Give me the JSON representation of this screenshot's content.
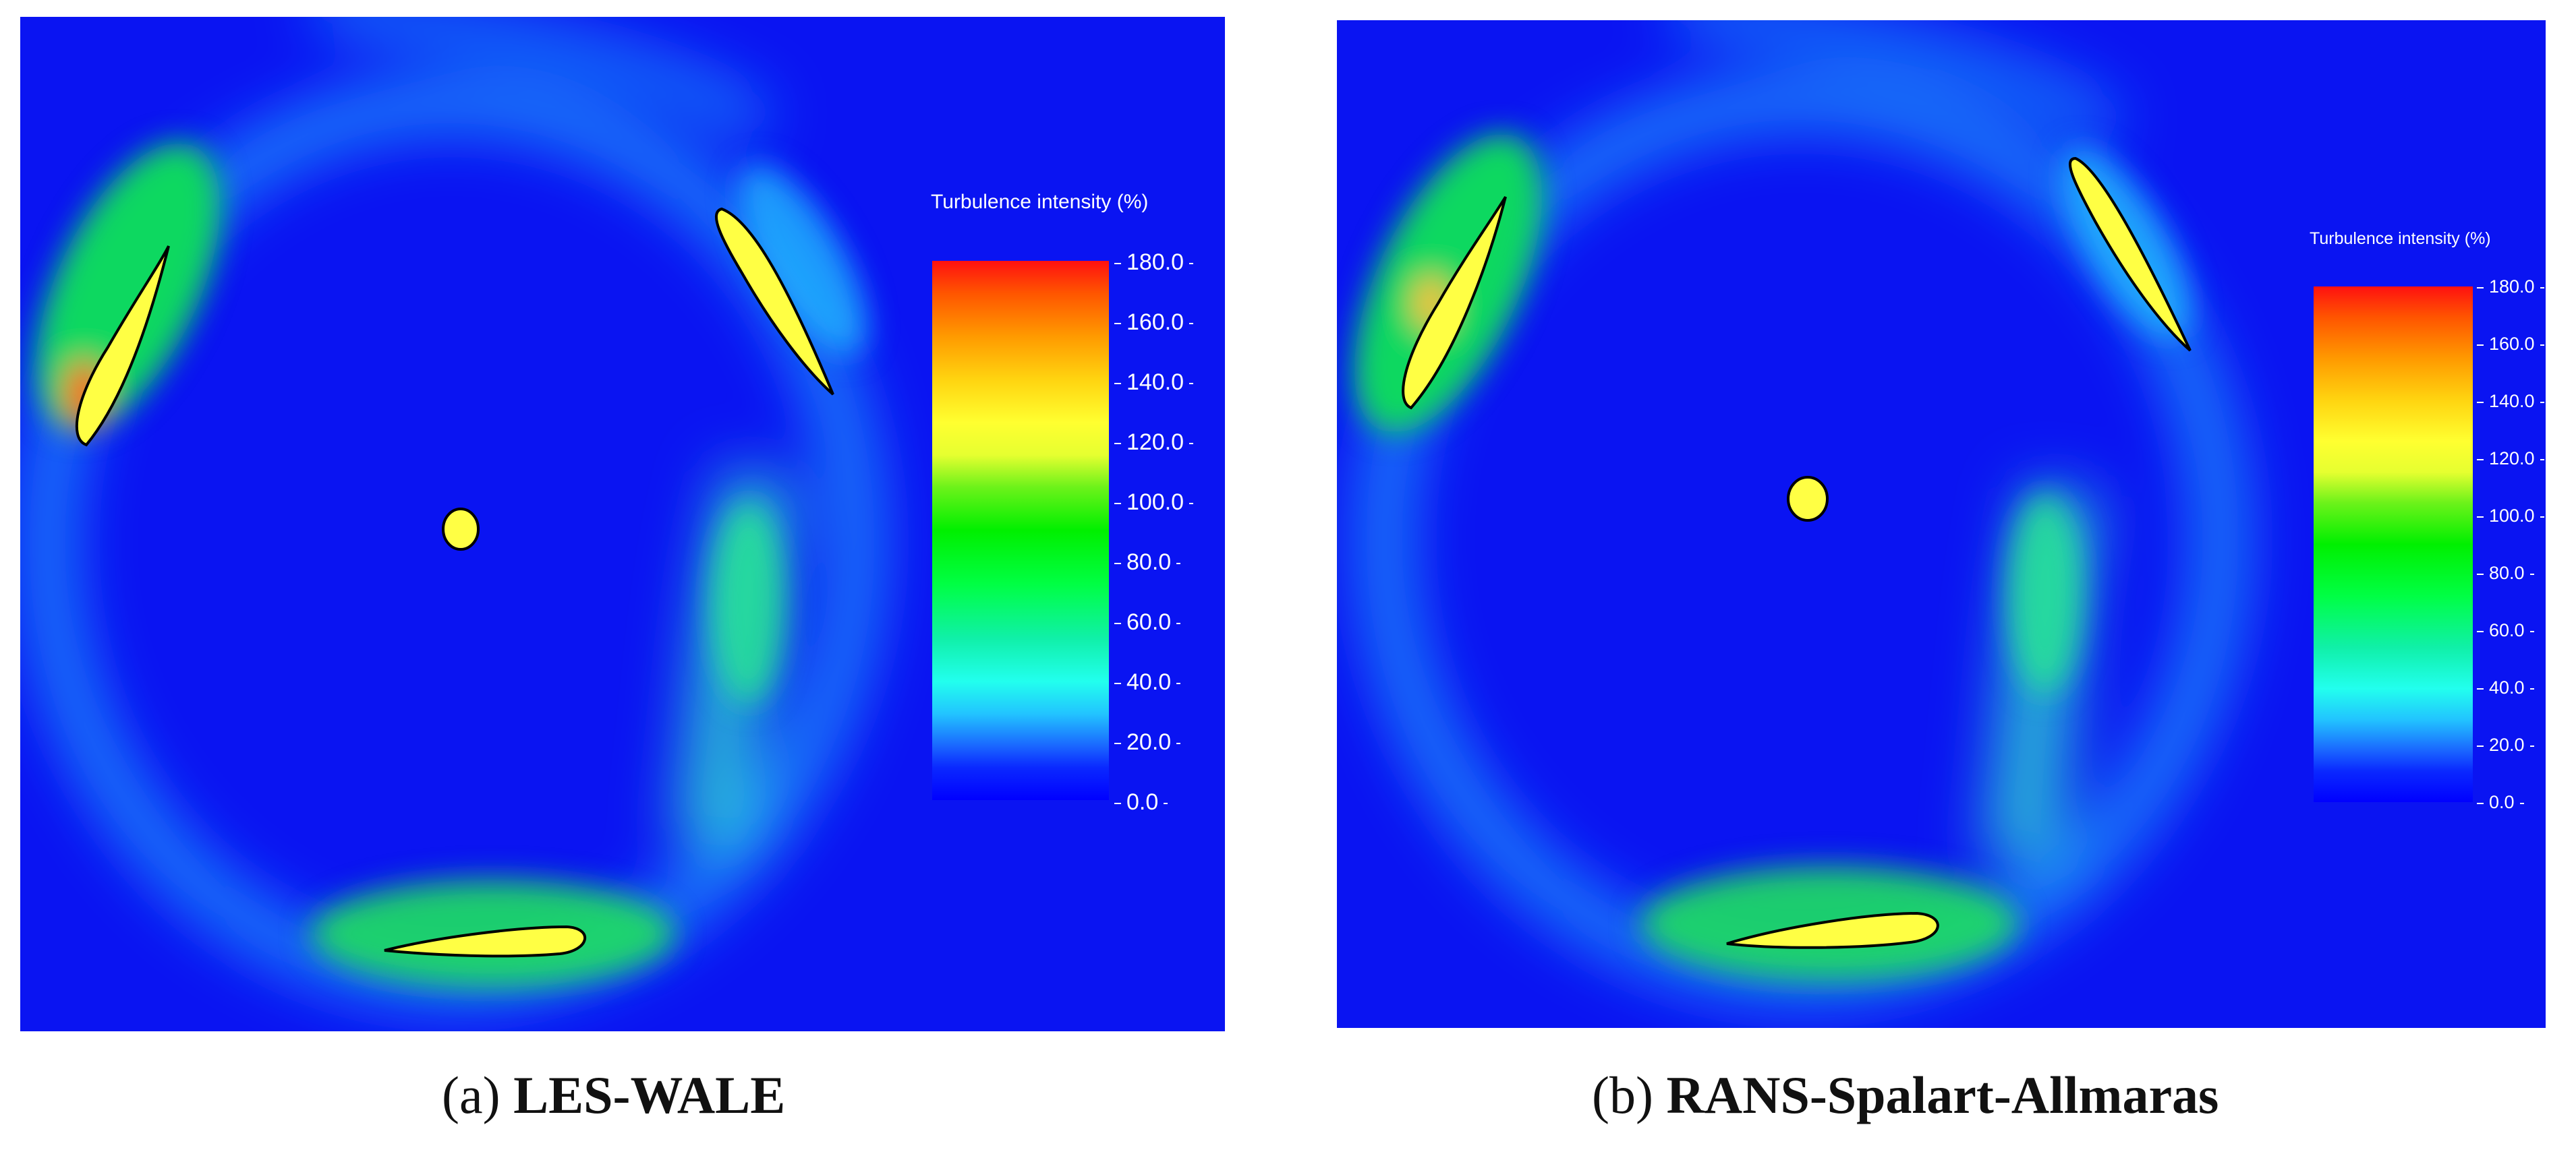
{
  "legend": {
    "title": "Turbulence intensity (%)",
    "ticks": [
      "180.0",
      "160.0",
      "140.0",
      "120.0",
      "100.0",
      "80.0",
      "60.0",
      "40.0",
      "20.0",
      "0.0"
    ]
  },
  "captions": [
    {
      "letter": "(a)",
      "label": "LES-WALE"
    },
    {
      "letter": "(b)",
      "label": "RANS-Spalart-Allmaras"
    }
  ],
  "colors": {
    "background_field": "#0a14f2",
    "blade_fill": "#ffff44",
    "blade_outline": "#000000"
  }
}
